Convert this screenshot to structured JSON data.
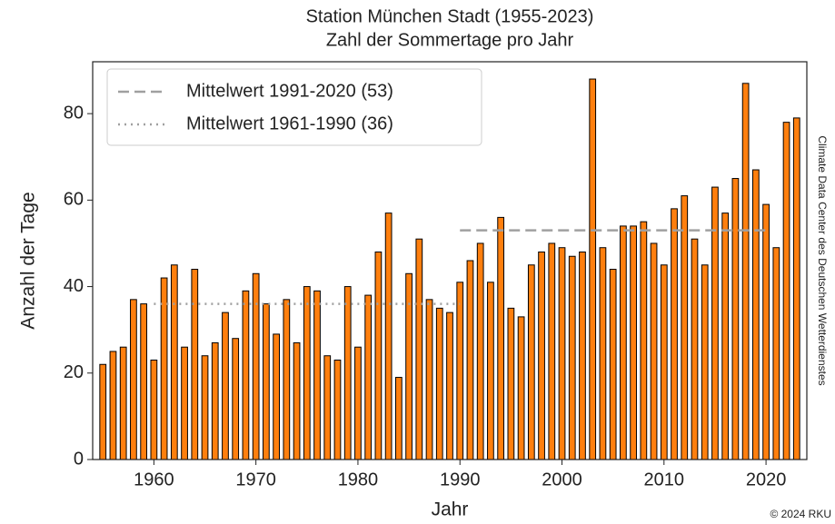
{
  "chart_data": {
    "type": "bar",
    "title": [
      "Station München Stadt (1955-2023)",
      "Zahl der Sommertage pro Jahr"
    ],
    "x_label": "Jahr",
    "y_label": "Anzahl der Tage",
    "side_note": "Climate Data Center des Deutschen Wetterdienstes",
    "credit": "© 2024 RKU",
    "x": [
      1955,
      1956,
      1957,
      1958,
      1959,
      1960,
      1961,
      1962,
      1963,
      1964,
      1965,
      1966,
      1967,
      1968,
      1969,
      1970,
      1971,
      1972,
      1973,
      1974,
      1975,
      1976,
      1977,
      1978,
      1979,
      1980,
      1981,
      1982,
      1983,
      1984,
      1985,
      1986,
      1987,
      1988,
      1989,
      1990,
      1991,
      1992,
      1993,
      1994,
      1995,
      1996,
      1997,
      1998,
      1999,
      2000,
      2001,
      2002,
      2003,
      2004,
      2005,
      2006,
      2007,
      2008,
      2009,
      2010,
      2011,
      2012,
      2013,
      2014,
      2015,
      2016,
      2017,
      2018,
      2019,
      2020,
      2021,
      2022,
      2023
    ],
    "values": [
      22,
      25,
      26,
      37,
      36,
      23,
      42,
      45,
      26,
      44,
      24,
      27,
      34,
      28,
      39,
      43,
      36,
      29,
      37,
      27,
      40,
      39,
      24,
      23,
      40,
      26,
      38,
      48,
      57,
      19,
      43,
      51,
      37,
      35,
      34,
      41,
      46,
      50,
      41,
      56,
      35,
      33,
      45,
      48,
      50,
      49,
      47,
      48,
      88,
      49,
      44,
      54,
      54,
      55,
      50,
      45,
      58,
      61,
      51,
      45,
      63,
      57,
      65,
      87,
      67,
      59,
      49,
      78,
      79
    ],
    "color": "#ff7f0e",
    "edge_color": "#000000",
    "xlim": [
      1954,
      2024
    ],
    "xticks": [
      1960,
      1970,
      1980,
      1990,
      2000,
      2010,
      2020
    ],
    "ylim": [
      0,
      92
    ],
    "yticks": [
      0,
      20,
      40,
      60,
      80
    ],
    "grid": false,
    "legend": "upper left",
    "reference_lines": [
      {
        "name": "Mittelwert 1991-2020 (53)",
        "value": 53,
        "x": [
          1990,
          2020
        ],
        "style": "dashed",
        "color": "#a0a0a0"
      },
      {
        "name": "Mittelwert 1961-1990 (36)",
        "value": 36,
        "x": [
          1960,
          1990
        ],
        "style": "dotted",
        "color": "#a0a0a0"
      }
    ]
  }
}
